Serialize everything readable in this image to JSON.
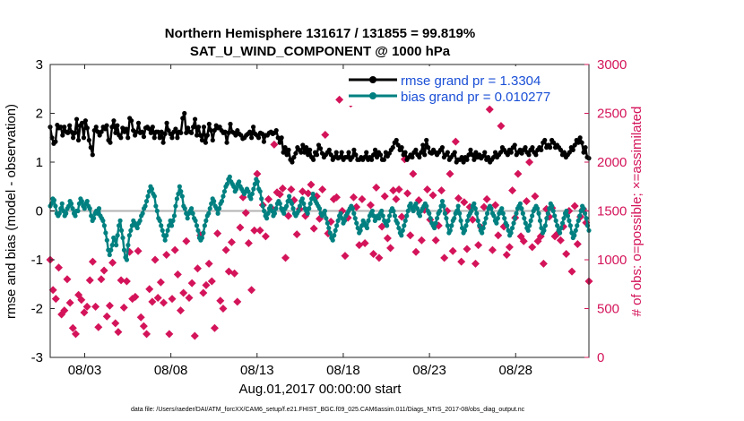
{
  "chart_data": {
    "type": "line",
    "title_line1": "Northern Hemisphere 131617 / 131855 = 99.819%",
    "title_line2": "SAT_U_WIND_COMPONENT @ 1000 hPa",
    "xlabel": "Aug.01,2017 00:00:00 start",
    "ylabel": "rmse and bias (model - observation)",
    "ylabel_right": "# of obs: o=possible; ×=assimilated",
    "footer": "data file: /Users/raeder/DAI/ATM_forcXX/CAM6_setup/f.e21.FHIST_BGC.f09_025.CAM6assim.011/Diags_NTrS_2017-08/obs_diag_output.nc",
    "xlim": [
      1,
      32.25
    ],
    "ylim": [
      -3,
      3
    ],
    "ylim_right": [
      0,
      3000
    ],
    "x_ticks": [
      3,
      8,
      13,
      18,
      23,
      28
    ],
    "x_tick_labels": [
      "08/03",
      "08/08",
      "08/13",
      "08/18",
      "08/23",
      "08/28"
    ],
    "y_ticks": [
      -3,
      -2,
      -1,
      0,
      1,
      2,
      3
    ],
    "y_tick_labels": [
      "-3",
      "-2",
      "-1",
      "0",
      "1",
      "2",
      "3"
    ],
    "y_right_ticks": [
      0,
      500,
      1000,
      1500,
      2000,
      2500,
      3000
    ],
    "y_right_tick_labels": [
      "0",
      "500",
      "1000",
      "1500",
      "2000",
      "2500",
      "3000"
    ],
    "colors": {
      "rmse": "#000000",
      "bias": "#008080",
      "obs": "#d4145a",
      "zero_line": "#b3b3b3",
      "legend_text": "#1a4fd6"
    },
    "series": [
      {
        "name": "rmse",
        "legend": "rmse grand pr = 1.3304",
        "values": [
          1.72,
          1.5,
          1.38,
          1.42,
          1.76,
          1.7,
          1.72,
          1.55,
          1.72,
          1.62,
          1.6,
          1.75,
          1.62,
          1.5,
          1.6,
          1.88,
          1.45,
          1.75,
          1.8,
          1.5,
          1.85,
          1.7,
          1.45,
          1.3,
          1.15,
          1.65,
          1.72,
          1.62,
          1.55,
          1.62,
          1.72,
          1.68,
          1.75,
          1.45,
          1.4,
          1.72,
          1.85,
          1.6,
          1.75,
          1.55,
          1.5,
          1.7,
          1.62,
          1.68,
          1.5,
          1.9,
          1.85,
          1.65,
          1.55,
          1.62,
          1.8,
          1.6,
          1.62,
          1.52,
          1.7,
          1.72,
          1.68,
          1.6,
          1.72,
          1.5,
          1.62,
          1.62,
          1.5,
          1.62,
          1.4,
          1.58,
          1.8,
          1.65,
          1.58,
          1.5,
          1.62,
          1.68,
          1.5,
          1.62,
          1.6,
          1.9,
          2.0,
          1.6,
          1.7,
          1.62,
          1.6,
          1.72,
          1.88,
          1.55,
          1.72,
          1.55,
          1.45,
          1.72,
          1.4,
          1.55,
          1.78,
          1.65,
          1.45,
          1.65,
          1.75,
          1.7,
          1.72,
          1.65,
          1.6,
          1.62,
          1.4,
          1.6,
          1.78,
          1.62,
          1.6,
          1.55,
          1.65,
          1.58,
          1.55,
          1.48,
          1.5,
          1.55,
          1.58,
          1.62,
          1.5,
          1.72,
          1.58,
          1.55,
          1.5,
          1.6,
          1.58,
          1.42,
          1.55,
          1.55,
          1.6,
          1.62,
          1.58,
          1.6,
          1.65,
          1.5,
          1.4,
          1.5,
          1.2,
          1.3,
          1.15,
          1.25,
          1.05,
          1.0,
          1.1,
          1.18,
          1.3,
          1.25,
          1.2,
          1.35,
          1.2,
          1.3,
          1.15,
          1.25,
          1.1,
          1.05,
          1.2,
          1.15,
          1.35,
          1.28,
          1.18,
          1.1,
          1.15,
          1.2,
          1.25,
          1.15,
          1.05,
          1.1,
          1.2,
          1.08,
          1.1,
          1.2,
          1.05,
          1.1,
          1.1,
          1.2,
          1.05,
          1.1,
          1.25,
          1.15,
          1.05,
          1.05,
          1.1,
          1.05,
          1.1,
          1.2,
          1.05,
          1.1,
          1.05,
          1.15,
          1.25,
          1.1,
          1.2,
          1.15,
          1.05,
          1.05,
          1.2,
          1.12,
          1.18,
          1.25,
          1.3,
          1.4,
          1.45,
          1.35,
          1.25,
          1.3,
          1.15,
          1.2,
          1.05,
          1.1,
          1.15,
          1.1,
          1.2,
          1.25,
          1.15,
          1.1,
          1.2,
          1.35,
          1.15,
          1.45,
          1.3,
          1.2,
          1.18,
          1.25,
          1.2,
          1.15,
          1.2,
          1.25,
          1.3,
          1.1,
          1.15,
          1.2,
          1.05,
          1.1,
          1.15,
          1.2,
          1.0,
          1.05,
          1.05,
          1.1,
          1.0,
          1.1,
          1.05,
          1.15,
          1.25,
          1.15,
          1.05,
          1.2,
          1.1,
          1.15,
          1.08,
          1.12,
          1.2,
          1.05,
          1.1,
          1.0,
          1.05,
          1.1,
          1.2,
          1.1,
          1.15,
          1.2,
          1.3,
          1.25,
          1.2,
          1.15,
          1.25,
          1.2,
          1.3,
          1.35,
          1.15,
          1.2,
          1.25,
          1.18,
          1.25,
          1.3,
          1.2,
          1.15,
          1.25,
          1.3,
          1.2,
          1.15,
          1.25,
          1.3,
          1.25,
          1.4,
          1.45,
          1.3,
          1.35,
          1.3,
          1.45,
          1.4,
          1.3,
          1.35,
          1.3,
          1.25,
          1.15,
          1.2,
          1.1,
          1.15,
          1.2,
          1.3,
          1.25,
          1.35,
          1.45,
          1.4,
          1.5,
          1.4,
          1.2,
          1.3,
          1.1,
          1.08
        ]
      },
      {
        "name": "bias",
        "legend": "bias grand pr = 0.010277",
        "values": [
          0.1,
          0.15,
          0.25,
          0.22,
          0.1,
          -0.05,
          -0.1,
          -0.05,
          0.05,
          0.15,
          0.0,
          -0.1,
          -0.05,
          0.05,
          0.1,
          0.2,
          0.15,
          0.05,
          -0.05,
          -0.1,
          0.0,
          0.0,
          0.15,
          0.25,
          0.2,
          0.1,
          0.05,
          0.15,
          0.2,
          0.1,
          0.05,
          -0.1,
          -0.2,
          -0.15,
          -0.05,
          0.0,
          -0.05,
          0.05,
          -0.1,
          -0.15,
          -0.2,
          -0.3,
          -0.45,
          -0.6,
          -0.8,
          -0.9,
          -0.8,
          -0.7,
          -0.55,
          -0.6,
          -0.7,
          -0.5,
          -0.3,
          -0.2,
          -0.4,
          -0.55,
          -0.8,
          -0.95,
          -1.0,
          -0.7,
          -0.5,
          -0.4,
          -0.3,
          -0.2,
          -0.25,
          -0.3,
          -0.35,
          -0.25,
          -0.2,
          -0.1,
          -0.05,
          0.05,
          0.1,
          0.2,
          0.3,
          0.4,
          0.5,
          0.45,
          0.35,
          0.3,
          0.1,
          0.0,
          -0.15,
          -0.2,
          -0.3,
          -0.4,
          -0.5,
          -0.6,
          -0.5,
          -0.4,
          -0.3,
          -0.2,
          -0.3,
          -0.2,
          -0.1,
          0.1,
          0.25,
          0.35,
          0.5,
          0.4,
          0.3,
          0.1,
          0.05,
          -0.05,
          -0.15,
          -0.05,
          0.0,
          0.05,
          -0.05,
          -0.15,
          -0.2,
          -0.3,
          -0.4,
          -0.55,
          -0.6,
          -0.55,
          -0.45,
          -0.3,
          -0.2,
          -0.1,
          -0.05,
          0.05,
          0.15,
          0.25,
          0.2,
          0.1,
          0.05,
          -0.05,
          0.05,
          0.15,
          0.2,
          0.3,
          0.4,
          0.5,
          0.55,
          0.65,
          0.7,
          0.6,
          0.55,
          0.5,
          0.4,
          0.45,
          0.55,
          0.6,
          0.5,
          0.45,
          0.4,
          0.35,
          0.4,
          0.45,
          0.4,
          0.3,
          0.25,
          0.35,
          0.45,
          0.55,
          0.65,
          0.6,
          0.45,
          0.4,
          0.25,
          0.1,
          0.0,
          -0.1,
          -0.15,
          -0.05,
          0.05,
          0.1,
          0.0,
          -0.1,
          -0.05,
          0.05,
          0.15,
          0.2,
          0.15,
          0.05,
          0.0,
          -0.05,
          0.05,
          0.1,
          0.2,
          0.3,
          0.2,
          0.15,
          0.05,
          -0.05,
          -0.1,
          -0.05,
          0.0,
          0.1,
          0.2,
          0.25,
          0.15,
          0.05,
          0.0,
          -0.05,
          0.05,
          0.15,
          0.25,
          0.35,
          0.25,
          0.2,
          0.15,
          0.1,
          0.05,
          -0.05,
          -0.1,
          -0.05,
          0.0,
          -0.15,
          -0.25,
          -0.35,
          -0.45,
          -0.55,
          -0.6,
          -0.5,
          -0.4,
          -0.3,
          -0.2,
          -0.1,
          -0.05,
          -0.15,
          -0.25,
          -0.2,
          -0.1,
          -0.05,
          0.0,
          0.05,
          0.1,
          0.05,
          -0.05,
          -0.15,
          -0.25,
          -0.35,
          -0.45,
          -0.4,
          -0.3,
          -0.2,
          -0.25,
          -0.3,
          -0.35,
          -0.2,
          -0.1,
          -0.05,
          0.0,
          -0.1,
          -0.2,
          -0.15,
          -0.1,
          -0.15,
          -0.05,
          0.0,
          -0.1,
          -0.2,
          -0.25,
          -0.3,
          -0.2,
          -0.1,
          0.0,
          0.05,
          0.0,
          -0.1,
          -0.2,
          -0.25,
          -0.35,
          -0.45,
          -0.5,
          -0.4,
          -0.3,
          -0.2,
          -0.1,
          0.0,
          0.1,
          0.15,
          0.05,
          0.0,
          0.1,
          0.15,
          0.05,
          -0.05,
          -0.1,
          0.0,
          0.05,
          0.1,
          0.15,
          0.1,
          0.0,
          -0.05,
          -0.15,
          -0.25,
          -0.3,
          -0.35,
          -0.25,
          -0.15,
          -0.05,
          0.0,
          0.1,
          0.2,
          0.1,
          -0.05,
          -0.15,
          -0.3,
          -0.45,
          -0.4,
          -0.3,
          -0.2,
          -0.15,
          -0.05,
          0.0,
          0.1,
          -0.05,
          -0.2,
          -0.35,
          -0.45,
          -0.4,
          -0.3,
          -0.2,
          -0.1,
          -0.05,
          0.0,
          0.1,
          0.15,
          0.05,
          -0.05,
          -0.2,
          -0.3,
          -0.4,
          -0.45,
          -0.35,
          -0.25,
          -0.15,
          -0.05,
          0.05,
          0.1,
          0.05,
          -0.05,
          -0.1,
          -0.2,
          -0.25,
          -0.15,
          -0.05,
          0.0,
          0.05,
          -0.05,
          -0.15,
          -0.25,
          -0.3,
          -0.4,
          -0.5,
          -0.45,
          -0.35,
          -0.25,
          -0.15,
          -0.05,
          0.05,
          0.1,
          0.15,
          0.05,
          -0.05,
          -0.15,
          -0.25,
          -0.35,
          -0.4,
          -0.3,
          -0.2,
          -0.1,
          0.0,
          0.05,
          0.1,
          0.05,
          -0.05,
          -0.2,
          -0.35,
          -0.45,
          -0.4,
          -0.3,
          -0.15,
          -0.05,
          0.05,
          0.15,
          0.1,
          0.0,
          -0.1,
          -0.2,
          -0.3,
          -0.4,
          -0.45,
          -0.35,
          -0.25,
          -0.15,
          -0.05,
          0.0,
          -0.1,
          -0.2,
          -0.3,
          -0.45,
          -0.55,
          -0.5,
          -0.4,
          -0.3,
          -0.2,
          -0.1,
          0.0,
          0.1,
          0.05,
          -0.05,
          -0.15,
          -0.3,
          -0.4
        ]
      },
      {
        "name": "obs",
        "legend": "",
        "values": [
          1000,
          690,
          600,
          920,
          440,
          480,
          800,
          560,
          300,
          240,
          640,
          590,
          460,
          520,
          790,
          980,
          520,
          310,
          800,
          890,
          420,
          530,
          970,
          350,
          260,
          790,
          510,
          780,
          1080,
          600,
          620,
          1090,
          410,
          320,
          240,
          700,
          570,
          1000,
          610,
          770,
          560,
          1050,
          240,
          600,
          1100,
          850,
          480,
          660,
          1190,
          610,
          760,
          220,
          910,
          1250,
          660,
          740,
          960,
          780,
          300,
          1270,
          580,
          500,
          1100,
          880,
          1180,
          860,
          570,
          1330,
          1640,
          1480,
          1170,
          690,
          1300,
          1880,
          1300,
          1560,
          1240,
          1620,
          1530,
          2180,
          1690,
          1670,
          1730,
          1020,
          1450,
          1720,
          1610,
          1260,
          1520,
          1700,
          1450,
          1680,
          1770,
          1320,
          1650,
          1420,
          1720,
          2280,
          1270,
          1390,
          1620,
          1640,
          2640,
          1500,
          1040,
          1430,
          2600,
          1640,
          1540,
          1150,
          1620,
          1170,
          2680,
          1560,
          1060,
          1740,
          1020,
          1340,
          1650,
          1220,
          1120,
          1710,
          1620,
          1720,
          1440,
          2030,
          1680,
          1250,
          1880,
          1080,
          1610,
          1200,
          1510,
          1720,
          1410,
          1660,
          1200,
          1350,
          1710,
          1020,
          1500,
          1880,
          1090,
          2210,
          1630,
          980,
          1590,
          1110,
          1540,
          1410,
          960,
          1150,
          1330,
          1540,
          1620,
          2540,
          1100,
          1560,
          1250,
          2370,
          1340,
          1050,
          1130,
          1710,
          1430,
          1880,
          1240,
          1190,
          1600,
          2000,
          1130,
          1650,
          1190,
          1240,
          960,
          1520,
          1440,
          1530,
          1240,
          1270,
          1200,
          1340,
          1060,
          1500,
          880,
          1550,
          1160,
          1440,
          1520,
          1380,
          780
        ]
      }
    ]
  }
}
